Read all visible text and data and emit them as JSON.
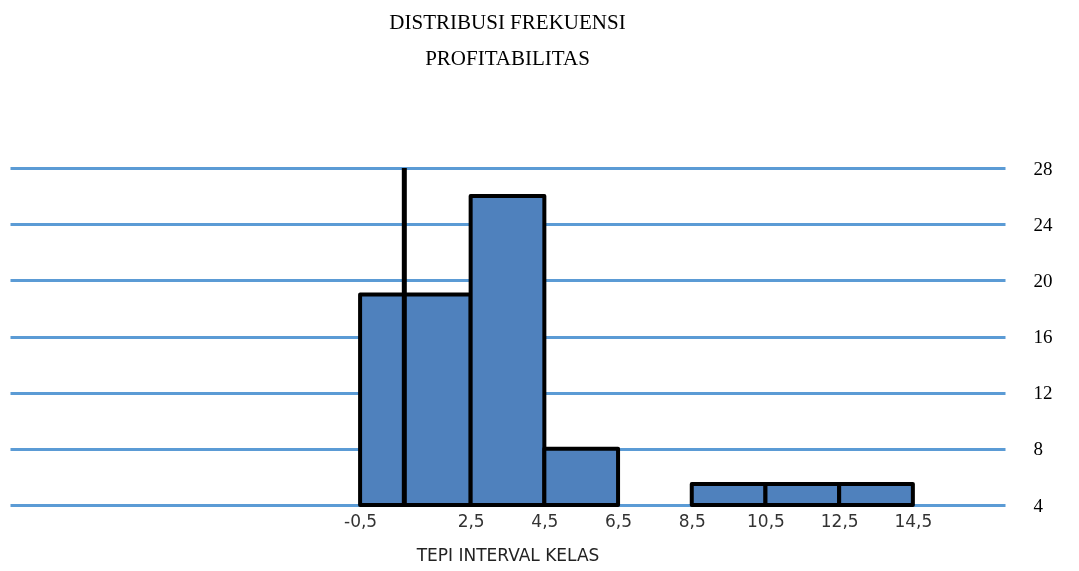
{
  "chart_data": {
    "type": "histogram",
    "title": "DISTRIBUSI FREKUENSI\nPROFITABILITAS",
    "xlabel": "TEPI INTERVAL KELAS",
    "bins": [
      -0.5,
      2.5,
      4.5,
      6.5,
      8.5,
      10.5,
      12.5,
      14.5
    ],
    "values": [
      19,
      26,
      8,
      null,
      5.5,
      5.5,
      5.5
    ],
    "color": "#4f81bd",
    "xlim": [
      -10,
      17
    ],
    "xticks": [
      {
        "value": -0.5,
        "label": "-0,5"
      },
      {
        "value": 2.5,
        "label": "2,5"
      },
      {
        "value": 4.5,
        "label": "4,5"
      },
      {
        "value": 6.5,
        "label": "6,5"
      },
      {
        "value": 8.5,
        "label": "8,5"
      },
      {
        "value": 10.5,
        "label": "10,5"
      },
      {
        "value": 12.5,
        "label": "12,5"
      },
      {
        "value": 14.5,
        "label": "14,5"
      }
    ],
    "ylim": [
      4,
      28
    ],
    "yticks": [
      4,
      8,
      12,
      16,
      20,
      24,
      28
    ],
    "grid": "y",
    "ref_lines": [
      {
        "axis": "x",
        "value": 0.7,
        "color": "#000000"
      }
    ]
  }
}
